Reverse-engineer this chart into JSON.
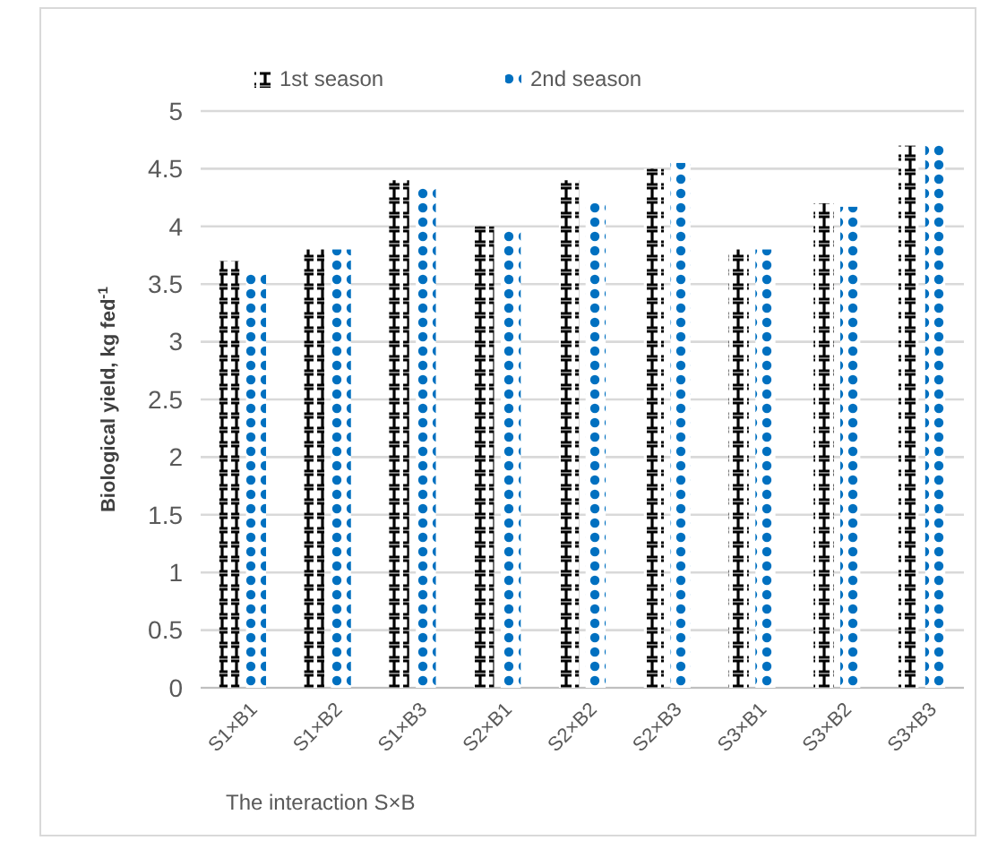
{
  "chart_data": {
    "type": "bar",
    "xlabel": "The interaction S×B",
    "ylabel": "Biological yield, kg fed$^{-1}$",
    "categories": [
      "S1×B1",
      "S1×B2",
      "S1×B3",
      "S2×B1",
      "S2×B2",
      "S2×B3",
      "S3×B1",
      "S3×B2",
      "S3×B3"
    ],
    "series": [
      {
        "name": "1st season",
        "color": "#000000",
        "values": [
          3.7,
          3.8,
          4.4,
          4.0,
          4.4,
          4.5,
          3.8,
          4.2,
          4.7
        ]
      },
      {
        "name": "2nd season",
        "color": "#0070c0",
        "values": [
          3.6,
          3.8,
          4.33,
          3.96,
          4.2,
          4.55,
          3.8,
          4.17,
          4.72
        ]
      }
    ],
    "ylim": [
      0,
      5
    ],
    "yticks": [
      0,
      0.5,
      1,
      1.5,
      2,
      2.5,
      3,
      3.5,
      4,
      4.5,
      5
    ],
    "grid": "y",
    "legend": "top"
  }
}
